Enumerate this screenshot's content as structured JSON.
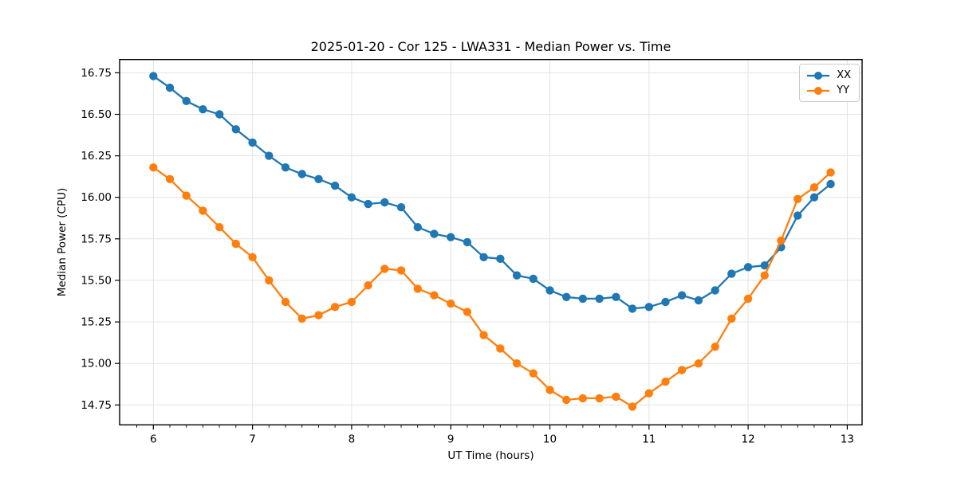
{
  "window": {
    "background": "#ffffff"
  },
  "chart_data": {
    "type": "line",
    "title": "2025-01-20 - Cor 125 - LWA331 - Median Power vs. Time",
    "xlabel": "UT Time (hours)",
    "ylabel": "Median Power (CPU)",
    "grid": true,
    "legend_position": "upper right",
    "xlim": [
      5.66,
      13.15
    ],
    "ylim": [
      14.63,
      16.83
    ],
    "x_major_ticks": [
      6,
      7,
      8,
      9,
      10,
      11,
      12,
      13
    ],
    "y_major_ticks": [
      14.75,
      15.0,
      15.25,
      15.5,
      15.75,
      16.0,
      16.25,
      16.5,
      16.75
    ],
    "x_minor_step_hours": 0.1667,
    "x": [
      6.0,
      6.167,
      6.333,
      6.5,
      6.667,
      6.833,
      7.0,
      7.167,
      7.333,
      7.5,
      7.667,
      7.833,
      8.0,
      8.167,
      8.333,
      8.5,
      8.667,
      8.833,
      9.0,
      9.167,
      9.333,
      9.5,
      9.667,
      9.833,
      10.0,
      10.167,
      10.333,
      10.5,
      10.667,
      10.833,
      11.0,
      11.167,
      11.333,
      11.5,
      11.667,
      11.833,
      12.0,
      12.167,
      12.333,
      12.5,
      12.667,
      12.833
    ],
    "series": [
      {
        "name": "XX",
        "color": "#1f77b4",
        "values": [
          16.73,
          16.66,
          16.58,
          16.53,
          16.5,
          16.41,
          16.33,
          16.25,
          16.18,
          16.14,
          16.11,
          16.07,
          16.0,
          15.96,
          15.97,
          15.94,
          15.82,
          15.78,
          15.76,
          15.73,
          15.64,
          15.63,
          15.53,
          15.51,
          15.44,
          15.4,
          15.39,
          15.39,
          15.4,
          15.33,
          15.34,
          15.37,
          15.41,
          15.38,
          15.44,
          15.54,
          15.58,
          15.59,
          15.7,
          15.89,
          16.0,
          16.08
        ]
      },
      {
        "name": "YY",
        "color": "#ff7f0e",
        "values": [
          16.18,
          16.11,
          16.01,
          15.92,
          15.82,
          15.72,
          15.64,
          15.5,
          15.37,
          15.27,
          15.29,
          15.34,
          15.37,
          15.47,
          15.57,
          15.56,
          15.45,
          15.41,
          15.36,
          15.31,
          15.17,
          15.09,
          15.0,
          14.94,
          14.84,
          14.78,
          14.79,
          14.79,
          14.8,
          14.74,
          14.82,
          14.89,
          14.96,
          15.0,
          15.1,
          15.27,
          15.39,
          15.53,
          15.74,
          15.99,
          16.06,
          16.15
        ]
      }
    ],
    "style": {
      "grid_color": "#e3e3e3",
      "spine_color": "#000000",
      "tick_color": "#000000",
      "marker_radius": 5.2,
      "line_width": 2.3
    }
  }
}
